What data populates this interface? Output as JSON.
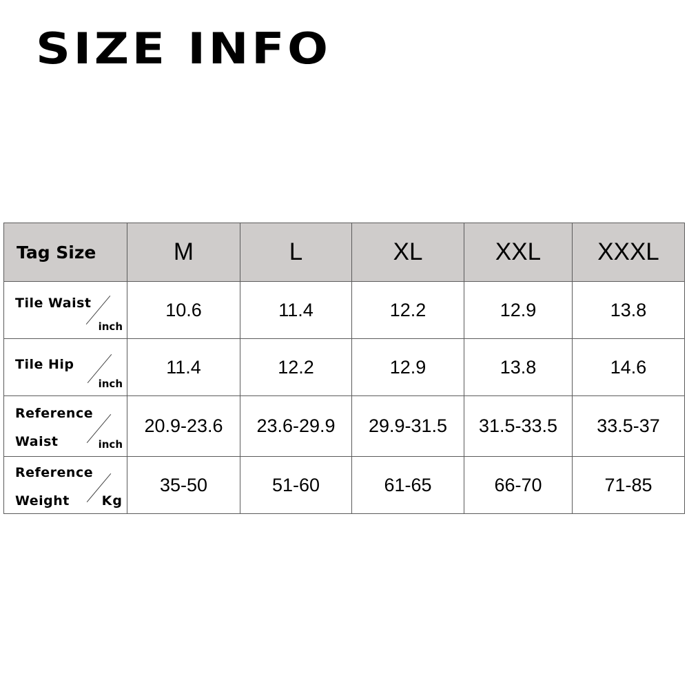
{
  "title": "SIZE INFO",
  "table": {
    "header_label": "Tag Size",
    "sizes": [
      "M",
      "L",
      "XL",
      "XXL",
      "XXXL"
    ],
    "rows": [
      {
        "label_line1": "Tile Waist",
        "label_line2": "",
        "unit": "inch",
        "values": [
          "10.6",
          "11.4",
          "12.2",
          "12.9",
          "13.8"
        ]
      },
      {
        "label_line1": "Tile Hip",
        "label_line2": "",
        "unit": "inch",
        "values": [
          "11.4",
          "12.2",
          "12.9",
          "13.8",
          "14.6"
        ]
      },
      {
        "label_line1": "Reference",
        "label_line2": "Waist",
        "unit": "inch",
        "values": [
          "20.9-23.6",
          "23.6-29.9",
          "29.9-31.5",
          "31.5-33.5",
          "33.5-37"
        ]
      },
      {
        "label_line1": "Reference",
        "label_line2": "Weight",
        "unit": "Kg",
        "values": [
          "35-50",
          "51-60",
          "61-65",
          "66-70",
          "71-85"
        ]
      }
    ]
  },
  "colors": {
    "header_bg": "#cfcccb",
    "border": "#5a5a5a"
  }
}
